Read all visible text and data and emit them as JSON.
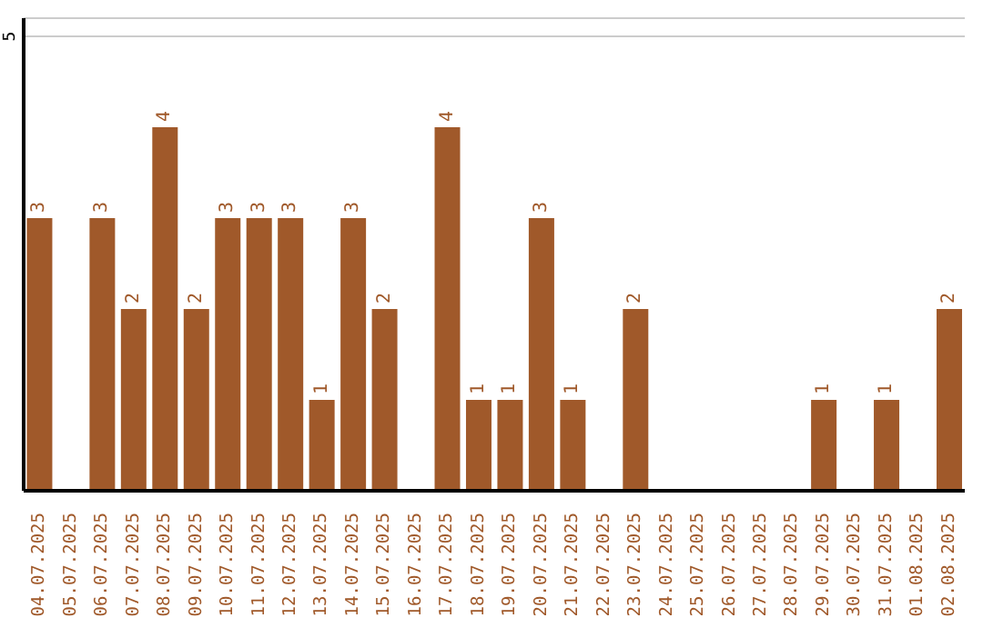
{
  "chart_data": {
    "type": "bar",
    "categories": [
      "04.07.2025",
      "05.07.2025",
      "06.07.2025",
      "07.07.2025",
      "08.07.2025",
      "09.07.2025",
      "10.07.2025",
      "11.07.2025",
      "12.07.2025",
      "13.07.2025",
      "14.07.2025",
      "15.07.2025",
      "16.07.2025",
      "17.07.2025",
      "18.07.2025",
      "19.07.2025",
      "20.07.2025",
      "21.07.2025",
      "22.07.2025",
      "23.07.2025",
      "24.07.2025",
      "25.07.2025",
      "26.07.2025",
      "27.07.2025",
      "28.07.2025",
      "29.07.2025",
      "30.07.2025",
      "31.07.2025",
      "01.08.2025",
      "02.08.2025"
    ],
    "values": [
      3,
      0,
      3,
      2,
      4,
      2,
      3,
      3,
      3,
      1,
      3,
      2,
      0,
      4,
      1,
      1,
      3,
      1,
      0,
      2,
      0,
      0,
      0,
      0,
      0,
      1,
      0,
      1,
      0,
      2
    ],
    "value_labels": [
      "3",
      null,
      "3",
      "2",
      "4",
      "2",
      "3",
      "3",
      "3",
      "1",
      "3",
      "2",
      null,
      "4",
      "1",
      "1",
      "3",
      "1",
      null,
      "2",
      null,
      null,
      null,
      null,
      null,
      "1",
      null,
      "1",
      null,
      "2"
    ],
    "color": "#a0592a",
    "ylim": [
      0,
      5.2
    ],
    "yticks": [
      5
    ],
    "grid": "y"
  }
}
